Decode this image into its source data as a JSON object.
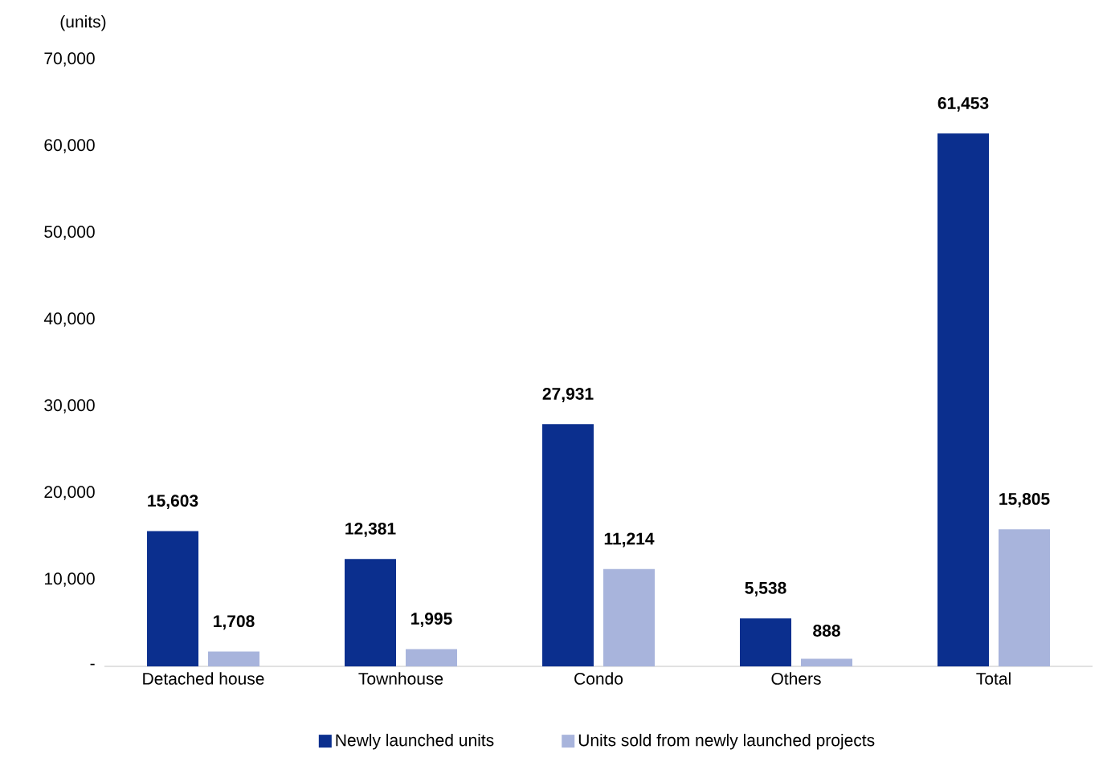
{
  "chart_data": {
    "type": "bar",
    "ylabel": "(units)",
    "categories": [
      "Detached house",
      "Townhouse",
      "Condo",
      "Others",
      "Total"
    ],
    "series": [
      {
        "name": "Newly launched units",
        "color": "#0b2f8e",
        "values": [
          15603,
          12381,
          27931,
          5538,
          61453
        ],
        "value_labels": [
          "15,603",
          "12,381",
          "27,931",
          "5,538",
          "61,453"
        ]
      },
      {
        "name": "Units sold from newly launched projects",
        "color": "#a8b4dc",
        "values": [
          1708,
          1995,
          11214,
          888,
          15805
        ],
        "value_labels": [
          "1,708",
          "1,995",
          "11,214",
          "888",
          "15,805"
        ]
      }
    ],
    "ylim": [
      0,
      70000
    ],
    "yticks": [
      {
        "value": 0,
        "label": "-"
      },
      {
        "value": 10000,
        "label": "10,000"
      },
      {
        "value": 20000,
        "label": "20,000"
      },
      {
        "value": 30000,
        "label": "30,000"
      },
      {
        "value": 40000,
        "label": "40,000"
      },
      {
        "value": 50000,
        "label": "50,000"
      },
      {
        "value": 60000,
        "label": "60,000"
      },
      {
        "value": 70000,
        "label": "70,000"
      }
    ],
    "legend": "bottom"
  }
}
